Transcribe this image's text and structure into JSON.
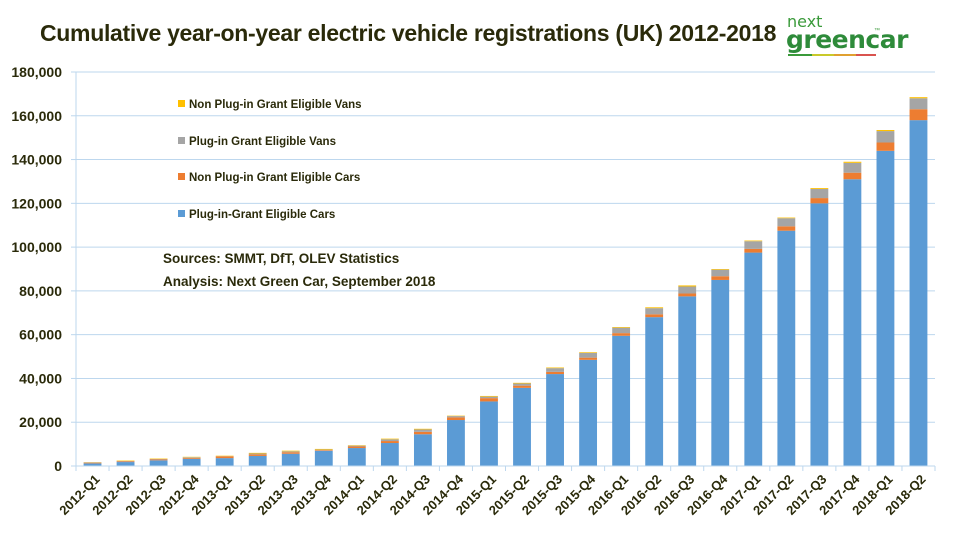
{
  "header": {
    "title": "Cumulative year-on-year electric vehicle registrations (UK) 2012-2018",
    "logo_top": "next",
    "logo_main": "greencar",
    "logo_tm": "™",
    "logo_stripe_colors": [
      "#3a9a3a",
      "#c9c92a",
      "#e0a030",
      "#d9534f"
    ]
  },
  "chart_data": {
    "type": "bar",
    "stacked": true,
    "title": "Cumulative year-on-year electric vehicle registrations (UK) 2012-2018",
    "xlabel": "",
    "ylabel": "",
    "ylim": [
      0,
      180000
    ],
    "yticks": [
      0,
      20000,
      40000,
      60000,
      80000,
      100000,
      120000,
      140000,
      160000,
      180000
    ],
    "ytick_labels": [
      "0",
      "20,000",
      "40,000",
      "60,000",
      "80,000",
      "100,000",
      "120,000",
      "140,000",
      "160,000",
      "180,000"
    ],
    "grid": true,
    "legend_position": "top-left",
    "categories": [
      "2012-Q1",
      "2012-Q2",
      "2012-Q3",
      "2012-Q4",
      "2013-Q1",
      "2013-Q2",
      "2013-Q3",
      "2013-Q4",
      "2014-Q1",
      "2014-Q2",
      "2014-Q3",
      "2014-Q4",
      "2015-Q1",
      "2015-Q2",
      "2015-Q3",
      "2015-Q4",
      "2016-Q1",
      "2016-Q2",
      "2016-Q3",
      "2016-Q4",
      "2017-Q1",
      "2017-Q2",
      "2017-Q3",
      "2017-Q4",
      "2018-Q1",
      "2018-Q2"
    ],
    "series": [
      {
        "name": "Plug-in-Grant Eligible Cars",
        "color": "#5b9bd5",
        "values": [
          1200,
          1800,
          2600,
          3300,
          3600,
          4600,
          5600,
          6900,
          8200,
          10500,
          14500,
          21000,
          29500,
          35700,
          42000,
          48500,
          59500,
          68000,
          77500,
          85000,
          97500,
          107500,
          120000,
          131000,
          144000,
          158000
        ]
      },
      {
        "name": "Non Plug-in Grant Eligible Cars",
        "color": "#ed7d31",
        "values": [
          300,
          300,
          400,
          400,
          800,
          700,
          700,
          300,
          700,
          900,
          1100,
          1200,
          1500,
          1000,
          1000,
          1000,
          1200,
          1300,
          1300,
          1700,
          1700,
          2000,
          2400,
          3000,
          3800,
          5000
        ]
      },
      {
        "name": "Plug-in Grant Eligible Vans",
        "color": "#a5a5a5",
        "values": [
          200,
          200,
          200,
          300,
          100,
          400,
          400,
          300,
          400,
          800,
          1100,
          600,
          700,
          1000,
          1700,
          2200,
          2500,
          2800,
          3200,
          3000,
          3500,
          3700,
          4200,
          4500,
          5200,
          5000
        ]
      },
      {
        "name": "Non Plug-in Grant Eligible Vans",
        "color": "#ffc000",
        "values": [
          100,
          200,
          200,
          200,
          200,
          300,
          300,
          300,
          200,
          300,
          300,
          200,
          300,
          300,
          300,
          300,
          300,
          400,
          500,
          300,
          300,
          300,
          400,
          500,
          500,
          500
        ]
      }
    ],
    "annotations": [
      "Sources: SMMT, DfT, OLEV Statistics",
      "Analysis: Next Green Car, September 2018"
    ]
  },
  "legend": {
    "items": [
      {
        "label": "Non Plug-in Grant Eligible Vans",
        "color": "#ffc000"
      },
      {
        "label": "Plug-in Grant Eligible Vans",
        "color": "#a5a5a5"
      },
      {
        "label": "Non Plug-in Grant Eligible Cars",
        "color": "#ed7d31"
      },
      {
        "label": "Plug-in-Grant Eligible Cars",
        "color": "#5b9bd5"
      }
    ]
  },
  "notes": {
    "sources": "Sources: SMMT, DfT, OLEV Statistics",
    "analysis": "Analysis: Next Green Car, September 2018"
  },
  "style": {
    "gridline_color": "#bdd7ee",
    "axis_color": "#bdd7ee",
    "text_color": "#2a2a0a"
  }
}
